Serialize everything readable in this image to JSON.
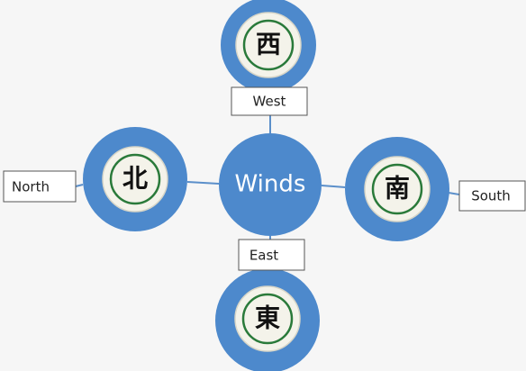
{
  "center": {
    "label": "Winds"
  },
  "nodes": [
    {
      "label": "West",
      "tile": "西"
    },
    {
      "label": "North",
      "tile": "北"
    },
    {
      "label": "South",
      "tile": "南"
    },
    {
      "label": "East",
      "tile": "東"
    }
  ]
}
